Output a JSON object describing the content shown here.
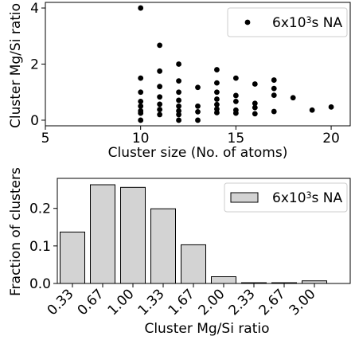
{
  "chart_data": [
    {
      "type": "scatter",
      "xlabel": "Cluster size (No. of atoms)",
      "ylabel": "Cluster Mg/Si ratio",
      "xlim": [
        5,
        21
      ],
      "ylim": [
        -0.2,
        4.2
      ],
      "xticks": [
        {
          "value": 5,
          "label": "5"
        },
        {
          "value": 10,
          "label": "10"
        },
        {
          "value": 15,
          "label": "15"
        },
        {
          "value": 20,
          "label": "20"
        }
      ],
      "yticks": [
        {
          "value": 0,
          "label": "0"
        },
        {
          "value": 2,
          "label": "2"
        },
        {
          "value": 4,
          "label": "4"
        }
      ],
      "grid": false,
      "legend_position": "top-right",
      "series": [
        {
          "name": "6x10³s NA",
          "color": "#000000",
          "points": [
            {
              "x": 10,
              "y": 4.0
            },
            {
              "x": 10,
              "y": 1.5
            },
            {
              "x": 10,
              "y": 1.0
            },
            {
              "x": 10,
              "y": 0.67
            },
            {
              "x": 10,
              "y": 0.5
            },
            {
              "x": 10,
              "y": 0.33
            },
            {
              "x": 10,
              "y": 0.25
            },
            {
              "x": 10,
              "y": 0.0
            },
            {
              "x": 11,
              "y": 2.67
            },
            {
              "x": 11,
              "y": 1.75
            },
            {
              "x": 11,
              "y": 1.2
            },
            {
              "x": 11,
              "y": 0.83
            },
            {
              "x": 11,
              "y": 0.57
            },
            {
              "x": 11,
              "y": 0.38
            },
            {
              "x": 11,
              "y": 0.2
            },
            {
              "x": 12,
              "y": 2.0
            },
            {
              "x": 12,
              "y": 1.4
            },
            {
              "x": 12,
              "y": 1.0
            },
            {
              "x": 12,
              "y": 0.71
            },
            {
              "x": 12,
              "y": 0.5
            },
            {
              "x": 12,
              "y": 0.33
            },
            {
              "x": 12,
              "y": 0.2
            },
            {
              "x": 12,
              "y": 0.0
            },
            {
              "x": 13,
              "y": 1.17
            },
            {
              "x": 13,
              "y": 0.5
            },
            {
              "x": 13,
              "y": 0.3
            },
            {
              "x": 13,
              "y": 0.0
            },
            {
              "x": 14,
              "y": 1.8
            },
            {
              "x": 14,
              "y": 1.33
            },
            {
              "x": 14,
              "y": 1.0
            },
            {
              "x": 14,
              "y": 0.75
            },
            {
              "x": 14,
              "y": 0.56
            },
            {
              "x": 14,
              "y": 0.4
            },
            {
              "x": 14,
              "y": 0.27
            },
            {
              "x": 15,
              "y": 1.5
            },
            {
              "x": 15,
              "y": 0.88
            },
            {
              "x": 15,
              "y": 0.67
            },
            {
              "x": 15,
              "y": 0.36
            },
            {
              "x": 15,
              "y": 0.25
            },
            {
              "x": 16,
              "y": 1.29
            },
            {
              "x": 16,
              "y": 0.6
            },
            {
              "x": 16,
              "y": 0.45
            },
            {
              "x": 16,
              "y": 0.23
            },
            {
              "x": 17,
              "y": 1.43
            },
            {
              "x": 17,
              "y": 1.13
            },
            {
              "x": 17,
              "y": 0.89
            },
            {
              "x": 17,
              "y": 0.31
            },
            {
              "x": 18,
              "y": 0.8
            },
            {
              "x": 19,
              "y": 0.36
            },
            {
              "x": 20,
              "y": 0.47
            }
          ]
        }
      ]
    },
    {
      "type": "bar",
      "xlabel": "Cluster Mg/Si ratio",
      "ylabel": "Fraction of clusters",
      "ylim": [
        0,
        0.28
      ],
      "categories": [
        "0.33",
        "0.67",
        "1.00",
        "1.33",
        "1.67",
        "2.00",
        "2.33",
        "2.67",
        "3.00"
      ],
      "values": [
        0.137,
        0.263,
        0.256,
        0.199,
        0.103,
        0.018,
        0.002,
        0.002,
        0.007
      ],
      "yticks": [
        {
          "value": 0.0,
          "label": "0.0"
        },
        {
          "value": 0.1,
          "label": "0.1"
        },
        {
          "value": 0.2,
          "label": "0.2"
        }
      ],
      "grid": false,
      "legend_position": "top-right",
      "series_name": "6x10³s NA",
      "bar_color": "#d3d3d3",
      "edge_color": "#000000"
    }
  ]
}
